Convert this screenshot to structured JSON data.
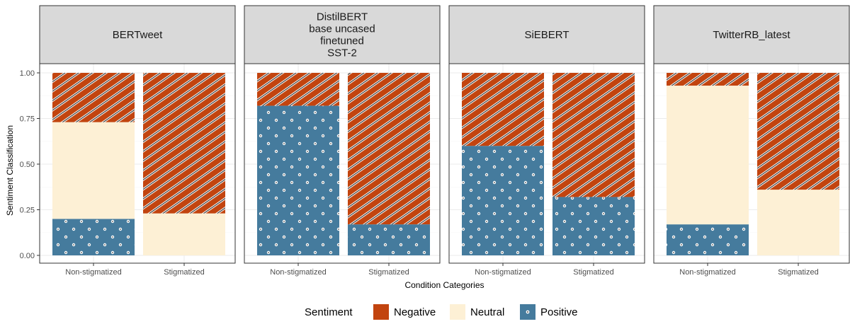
{
  "chart_data": {
    "type": "bar",
    "stacked": true,
    "xlabel": "Condition Categories",
    "ylabel": "Sentiment Classification",
    "ylim": [
      0,
      1
    ],
    "yticks": [
      "0.00",
      "0.25",
      "0.50",
      "0.75",
      "1.00"
    ],
    "ytick_values": [
      0,
      0.25,
      0.5,
      0.75,
      1
    ],
    "categories": [
      "Non-stigmatized",
      "Stigmatized"
    ],
    "grid": true,
    "legend": {
      "title": "Sentiment",
      "placement": "bottom",
      "entries": [
        {
          "key": "negative",
          "label": "Negative"
        },
        {
          "key": "neutral",
          "label": "Neutral"
        },
        {
          "key": "positive",
          "label": "Positive"
        }
      ]
    },
    "colors": {
      "negative": "#c2440f",
      "neutral": "#fdf0d5",
      "positive": "#457b9d"
    },
    "panels": [
      {
        "title_lines": [
          "BERTweet"
        ],
        "series": [
          {
            "key": "positive",
            "values": [
              0.2,
              0.0
            ]
          },
          {
            "key": "neutral",
            "values": [
              0.53,
              0.23
            ]
          },
          {
            "key": "negative",
            "values": [
              0.27,
              0.77
            ]
          }
        ]
      },
      {
        "title_lines": [
          "DistilBERT",
          "base uncased",
          "finetuned",
          "SST-2"
        ],
        "series": [
          {
            "key": "positive",
            "values": [
              0.82,
              0.17
            ]
          },
          {
            "key": "neutral",
            "values": [
              0.0,
              0.0
            ]
          },
          {
            "key": "negative",
            "values": [
              0.18,
              0.83
            ]
          }
        ]
      },
      {
        "title_lines": [
          "SiEBERT"
        ],
        "series": [
          {
            "key": "positive",
            "values": [
              0.6,
              0.32
            ]
          },
          {
            "key": "neutral",
            "values": [
              0.0,
              0.0
            ]
          },
          {
            "key": "negative",
            "values": [
              0.4,
              0.68
            ]
          }
        ]
      },
      {
        "title_lines": [
          "TwitterRB_latest"
        ],
        "series": [
          {
            "key": "positive",
            "values": [
              0.17,
              0.0
            ]
          },
          {
            "key": "neutral",
            "values": [
              0.76,
              0.36
            ]
          },
          {
            "key": "negative",
            "values": [
              0.07,
              0.64
            ]
          }
        ]
      }
    ]
  }
}
